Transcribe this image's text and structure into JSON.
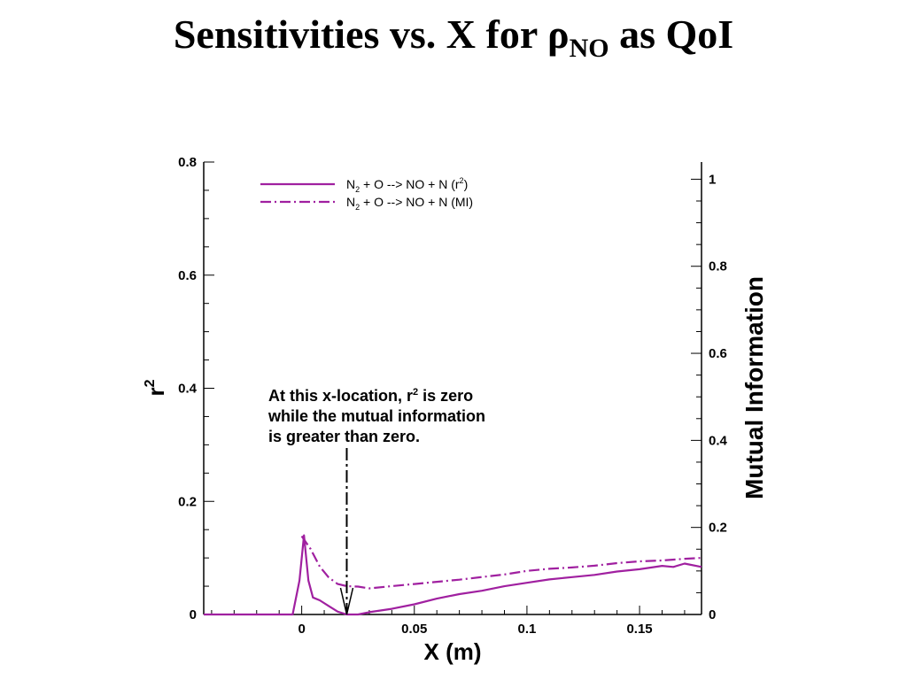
{
  "slide": {
    "title_prefix": "Sensitivities vs. X for ",
    "title_symbol": "ρ",
    "title_subscript": "NO",
    "title_suffix": " as QoI"
  },
  "chart_data": {
    "type": "line",
    "xlabel": "X (m)",
    "ylabel_left_base": "r",
    "ylabel_left_sup": "2",
    "ylabel_right": "Mutual Information",
    "xlim": [
      -0.0435,
      0.1775
    ],
    "ylim_left": [
      0,
      0.8
    ],
    "ylim_right": [
      0,
      1.0395
    ],
    "x_ticks": [
      0,
      0.05,
      0.1,
      0.15
    ],
    "x_tick_labels": [
      "0",
      "0.05",
      "0.1",
      "0.15"
    ],
    "y_left_ticks": [
      0,
      0.2,
      0.4,
      0.6,
      0.8
    ],
    "y_left_tick_labels": [
      "0",
      "0.2",
      "0.4",
      "0.6",
      "0.8"
    ],
    "y_right_ticks": [
      0,
      0.2,
      0.4,
      0.6,
      0.8,
      1.0
    ],
    "y_right_tick_labels": [
      "0",
      "0.2",
      "0.4",
      "0.6",
      "0.8",
      "1"
    ],
    "grid": false,
    "legend_position": "top-left",
    "line_color": "#a020a0",
    "series": [
      {
        "name_base": "N",
        "name_sub": "2",
        "name_mid": " + O --> NO + N (r",
        "name_sup": "2",
        "name_end": ")",
        "axis": "left",
        "style": "solid",
        "x": [
          -0.0435,
          -0.004,
          -0.001,
          0.001,
          0.003,
          0.005,
          0.008,
          0.012,
          0.016,
          0.02,
          0.025,
          0.03,
          0.04,
          0.05,
          0.06,
          0.07,
          0.08,
          0.09,
          0.1,
          0.11,
          0.12,
          0.13,
          0.14,
          0.15,
          0.16,
          0.165,
          0.17,
          0.1775
        ],
        "y": [
          0,
          0,
          0.06,
          0.14,
          0.06,
          0.03,
          0.025,
          0.015,
          0.005,
          0,
          0,
          0.004,
          0.01,
          0.018,
          0.028,
          0.036,
          0.042,
          0.05,
          0.056,
          0.062,
          0.066,
          0.07,
          0.076,
          0.08,
          0.086,
          0.084,
          0.09,
          0.084
        ]
      },
      {
        "name_base": "N",
        "name_sub": "2",
        "name_mid": " + O --> NO + N (MI)",
        "name_sup": "",
        "name_end": "",
        "axis": "right",
        "style": "dashdot",
        "x": [
          0,
          0.004,
          0.008,
          0.012,
          0.016,
          0.02,
          0.025,
          0.03,
          0.04,
          0.05,
          0.06,
          0.07,
          0.08,
          0.09,
          0.1,
          0.11,
          0.12,
          0.13,
          0.14,
          0.15,
          0.16,
          0.17,
          0.1775
        ],
        "y": [
          0.18,
          0.15,
          0.11,
          0.085,
          0.07,
          0.065,
          0.064,
          0.06,
          0.065,
          0.07,
          0.075,
          0.08,
          0.086,
          0.092,
          0.1,
          0.105,
          0.108,
          0.112,
          0.118,
          0.122,
          0.124,
          0.128,
          0.13
        ]
      }
    ],
    "annotation": {
      "line1_a": "At this x-location, r",
      "line1_sup": "2",
      "line1_b": " is zero",
      "line2": "while the mutual information",
      "line3": "is greater than zero.",
      "x": 0.02
    }
  }
}
